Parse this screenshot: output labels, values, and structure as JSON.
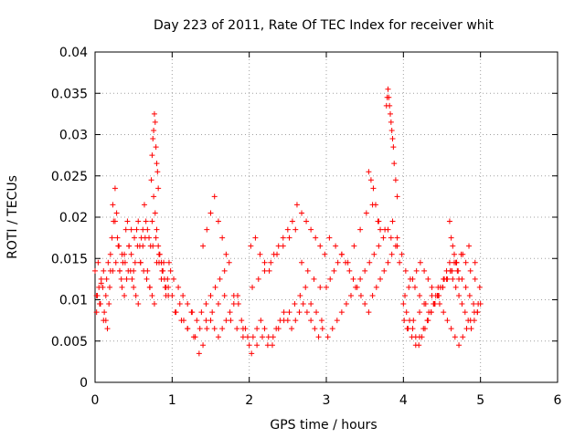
{
  "chart_data": {
    "type": "scatter",
    "title": "Day 223 of 2011, Rate Of TEC Index for receiver whit",
    "xlabel": "GPS time / hours",
    "ylabel": "ROTI / TECUs",
    "xlim": [
      0,
      6
    ],
    "ylim": [
      0,
      0.04
    ],
    "x_ticks": [
      0,
      1,
      2,
      3,
      4,
      5,
      6
    ],
    "x_tick_labels": [
      "0",
      "1",
      "2",
      "3",
      "4",
      "5",
      "6"
    ],
    "y_ticks": [
      0,
      0.005,
      0.01,
      0.015,
      0.02,
      0.025,
      0.03,
      0.035,
      0.04
    ],
    "y_tick_labels": [
      "0",
      "0.005",
      "0.01",
      "0.015",
      "0.02",
      "0.025",
      "0.03",
      "0.035",
      "0.04"
    ],
    "grid": true,
    "marker": "+",
    "marker_color": "#ff0000",
    "series": [
      {
        "name": "ROTI",
        "x": [
          0.0,
          0.02,
          0.04,
          0.06,
          0.08,
          0.1,
          0.12,
          0.14,
          0.16,
          0.18,
          0.2,
          0.22,
          0.24,
          0.26,
          0.28,
          0.3,
          0.32,
          0.34,
          0.36,
          0.38,
          0.4,
          0.42,
          0.44,
          0.46,
          0.48,
          0.5,
          0.52,
          0.54,
          0.56,
          0.58,
          0.6,
          0.62,
          0.64,
          0.66,
          0.68,
          0.7,
          0.72,
          0.74,
          0.76,
          0.78,
          0.8,
          0.82,
          0.84,
          0.86,
          0.88,
          0.9,
          0.92,
          0.94,
          0.96,
          0.98,
          0.02,
          0.05,
          0.08,
          0.11,
          0.14,
          0.17,
          0.2,
          0.23,
          0.26,
          0.29,
          0.32,
          0.35,
          0.38,
          0.41,
          0.44,
          0.47,
          0.5,
          0.53,
          0.56,
          0.59,
          0.62,
          0.65,
          0.68,
          0.71,
          0.74,
          0.77,
          0.8,
          0.83,
          0.86,
          0.89,
          0.92,
          0.95,
          0.03,
          0.07,
          0.11,
          0.15,
          0.19,
          0.23,
          0.27,
          0.31,
          0.35,
          0.39,
          0.43,
          0.47,
          0.51,
          0.55,
          0.59,
          0.63,
          0.67,
          0.71,
          0.75,
          0.79,
          0.83,
          0.87,
          0.91,
          0.95,
          0.73,
          0.74,
          0.75,
          0.76,
          0.77,
          0.78,
          0.79,
          0.8,
          0.81,
          0.82,
          1.0,
          1.05,
          1.1,
          1.15,
          1.2,
          1.25,
          1.3,
          1.35,
          1.4,
          1.45,
          1.5,
          1.55,
          1.6,
          1.65,
          1.7,
          1.75,
          1.8,
          1.85,
          1.9,
          1.95,
          1.02,
          1.08,
          1.14,
          1.2,
          1.26,
          1.32,
          1.38,
          1.44,
          1.5,
          1.56,
          1.62,
          1.68,
          1.74,
          1.8,
          1.86,
          1.92,
          1.98,
          1.04,
          1.12,
          1.2,
          1.28,
          1.36,
          1.44,
          1.52,
          1.6,
          1.68,
          1.76,
          1.84,
          1.92,
          1.4,
          1.45,
          1.5,
          1.55,
          1.6,
          1.65,
          1.7,
          2.0,
          2.05,
          2.1,
          2.15,
          2.2,
          2.25,
          2.3,
          2.35,
          2.4,
          2.45,
          2.5,
          2.55,
          2.6,
          2.65,
          2.7,
          2.75,
          2.8,
          2.85,
          2.9,
          2.95,
          2.02,
          2.08,
          2.14,
          2.2,
          2.26,
          2.32,
          2.38,
          2.44,
          2.5,
          2.56,
          2.62,
          2.68,
          2.74,
          2.8,
          2.86,
          2.92,
          2.98,
          2.04,
          2.12,
          2.2,
          2.28,
          2.36,
          2.44,
          2.52,
          2.6,
          2.68,
          2.76,
          2.84,
          2.92,
          2.03,
          2.1,
          2.17,
          2.24,
          2.31,
          2.38,
          2.45,
          2.52,
          2.59,
          2.66,
          2.73,
          2.8,
          2.87,
          2.94,
          3.0,
          3.05,
          3.1,
          3.15,
          3.2,
          3.25,
          3.3,
          3.35,
          3.4,
          3.45,
          3.5,
          3.55,
          3.6,
          3.65,
          3.7,
          3.75,
          3.8,
          3.85,
          3.9,
          3.95,
          3.02,
          3.08,
          3.14,
          3.2,
          3.26,
          3.32,
          3.38,
          3.44,
          3.5,
          3.56,
          3.62,
          3.68,
          3.74,
          3.8,
          3.86,
          3.92,
          3.98,
          3.04,
          3.12,
          3.2,
          3.28,
          3.36,
          3.44,
          3.52,
          3.6,
          3.68,
          3.76,
          3.84,
          3.92,
          3.78,
          3.79,
          3.8,
          3.81,
          3.82,
          3.83,
          3.84,
          3.85,
          3.86,
          3.87,
          3.88,
          3.9,
          3.92,
          3.55,
          3.58,
          3.61,
          3.64,
          3.67,
          3.7,
          4.0,
          4.04,
          4.08,
          4.12,
          4.16,
          4.2,
          4.24,
          4.28,
          4.32,
          4.36,
          4.4,
          4.44,
          4.48,
          4.52,
          4.56,
          4.6,
          4.64,
          4.68,
          4.72,
          4.76,
          4.8,
          4.84,
          4.88,
          4.92,
          4.96,
          5.0,
          4.02,
          4.07,
          4.12,
          4.17,
          4.22,
          4.27,
          4.32,
          4.37,
          4.42,
          4.47,
          4.52,
          4.57,
          4.62,
          4.67,
          4.72,
          4.77,
          4.82,
          4.87,
          4.92,
          4.97,
          4.01,
          4.06,
          4.11,
          4.16,
          4.21,
          4.26,
          4.31,
          4.36,
          4.41,
          4.46,
          4.51,
          4.56,
          4.61,
          4.66,
          4.71,
          4.76,
          4.81,
          4.86,
          4.91,
          4.96,
          4.03,
          4.09,
          4.15,
          4.21,
          4.27,
          4.33,
          4.39,
          4.45,
          4.51,
          4.57,
          4.63,
          4.69,
          4.75,
          4.81,
          4.87,
          4.93,
          4.99,
          4.05,
          4.13,
          4.21,
          4.29,
          4.37,
          4.45,
          4.53,
          4.61,
          4.69,
          4.77,
          4.85,
          4.93,
          4.6,
          4.62,
          4.64,
          4.66,
          4.68,
          4.7,
          4.72
        ],
        "y": [
          0.0135,
          0.0105,
          0.0145,
          0.0095,
          0.012,
          0.0115,
          0.0085,
          0.0075,
          0.0065,
          0.0095,
          0.0135,
          0.0175,
          0.0195,
          0.0235,
          0.0205,
          0.0165,
          0.0135,
          0.0125,
          0.0145,
          0.0155,
          0.0185,
          0.0195,
          0.0165,
          0.0135,
          0.0125,
          0.0115,
          0.0145,
          0.0185,
          0.0195,
          0.0165,
          0.0175,
          0.0185,
          0.0215,
          0.0195,
          0.0185,
          0.0175,
          0.0165,
          0.0195,
          0.0225,
          0.0205,
          0.0185,
          0.0165,
          0.0155,
          0.0145,
          0.0135,
          0.0125,
          0.0115,
          0.0125,
          0.0145,
          0.0135,
          0.0085,
          0.0115,
          0.0125,
          0.0075,
          0.0105,
          0.0145,
          0.0155,
          0.0215,
          0.0195,
          0.0175,
          0.0135,
          0.0115,
          0.0105,
          0.0125,
          0.0165,
          0.0185,
          0.0135,
          0.0105,
          0.0095,
          0.0145,
          0.0165,
          0.0175,
          0.0135,
          0.0115,
          0.0105,
          0.0095,
          0.0145,
          0.0155,
          0.0125,
          0.0145,
          0.0105,
          0.0115,
          0.0105,
          0.0095,
          0.0135,
          0.0125,
          0.0115,
          0.0135,
          0.0145,
          0.0165,
          0.0155,
          0.0145,
          0.0135,
          0.0155,
          0.0175,
          0.0165,
          0.0145,
          0.0135,
          0.0125,
          0.0115,
          0.0165,
          0.0175,
          0.0145,
          0.0135,
          0.0115,
          0.0105,
          0.0245,
          0.0275,
          0.0295,
          0.0305,
          0.0325,
          0.0315,
          0.0285,
          0.0265,
          0.0255,
          0.0235,
          0.0105,
          0.0085,
          0.0095,
          0.0075,
          0.0065,
          0.0085,
          0.0055,
          0.0035,
          0.0045,
          0.0065,
          0.0075,
          0.0065,
          0.0055,
          0.0065,
          0.0075,
          0.0085,
          0.0095,
          0.0105,
          0.0075,
          0.0065,
          0.0125,
          0.0115,
          0.0105,
          0.0095,
          0.0085,
          0.0075,
          0.0085,
          0.0095,
          0.0105,
          0.0115,
          0.0125,
          0.0135,
          0.0145,
          0.0105,
          0.0095,
          0.0065,
          0.0055,
          0.0085,
          0.0075,
          0.0065,
          0.0055,
          0.0065,
          0.0075,
          0.0085,
          0.0095,
          0.0105,
          0.0075,
          0.0065,
          0.0055,
          0.0165,
          0.0185,
          0.0205,
          0.0225,
          0.0195,
          0.0175,
          0.0155,
          0.0045,
          0.0055,
          0.0065,
          0.0075,
          0.0065,
          0.0055,
          0.0045,
          0.0065,
          0.0075,
          0.0085,
          0.0075,
          0.0065,
          0.0075,
          0.0085,
          0.0095,
          0.0085,
          0.0075,
          0.0065,
          0.0055,
          0.0065,
          0.0165,
          0.0175,
          0.0155,
          0.0145,
          0.0135,
          0.0155,
          0.0165,
          0.0175,
          0.0185,
          0.0195,
          0.0215,
          0.0205,
          0.0195,
          0.0185,
          0.0175,
          0.0165,
          0.0155,
          0.0115,
          0.0125,
          0.0135,
          0.0145,
          0.0155,
          0.0165,
          0.0175,
          0.0185,
          0.0145,
          0.0135,
          0.0125,
          0.0115,
          0.0035,
          0.0045,
          0.0055,
          0.0045,
          0.0055,
          0.0065,
          0.0075,
          0.0085,
          0.0095,
          0.0105,
          0.0115,
          0.0095,
          0.0085,
          0.0075,
          0.0115,
          0.0125,
          0.0135,
          0.0145,
          0.0155,
          0.0145,
          0.0135,
          0.0125,
          0.0115,
          0.0105,
          0.0095,
          0.0085,
          0.0105,
          0.0115,
          0.0125,
          0.0135,
          0.0145,
          0.0155,
          0.0165,
          0.0145,
          0.0055,
          0.0065,
          0.0075,
          0.0085,
          0.0095,
          0.0105,
          0.0115,
          0.0125,
          0.0135,
          0.0145,
          0.0155,
          0.0165,
          0.0175,
          0.0185,
          0.0195,
          0.0175,
          0.0155,
          0.0175,
          0.0165,
          0.0155,
          0.0145,
          0.0165,
          0.0185,
          0.0205,
          0.0215,
          0.0195,
          0.0185,
          0.0175,
          0.0165,
          0.0335,
          0.0345,
          0.0355,
          0.0345,
          0.0335,
          0.0325,
          0.0315,
          0.0305,
          0.0295,
          0.0285,
          0.0265,
          0.0245,
          0.0225,
          0.0255,
          0.0245,
          0.0235,
          0.0215,
          0.0195,
          0.0185,
          0.0095,
          0.0085,
          0.0075,
          0.0065,
          0.0055,
          0.0045,
          0.0055,
          0.0065,
          0.0075,
          0.0085,
          0.0095,
          0.0105,
          0.0115,
          0.0125,
          0.0135,
          0.0145,
          0.0125,
          0.0115,
          0.0105,
          0.0095,
          0.0085,
          0.0075,
          0.0065,
          0.0075,
          0.0085,
          0.0095,
          0.0105,
          0.0115,
          0.0125,
          0.0135,
          0.0145,
          0.0135,
          0.0125,
          0.0115,
          0.0105,
          0.0095,
          0.0085,
          0.0075,
          0.0065,
          0.0055,
          0.0045,
          0.0055,
          0.0065,
          0.0075,
          0.0085,
          0.0095,
          0.0075,
          0.0065,
          0.0055,
          0.0045,
          0.0055,
          0.0065,
          0.0075,
          0.0085,
          0.0095,
          0.0105,
          0.0115,
          0.0125,
          0.0135,
          0.0145,
          0.0135,
          0.0125,
          0.0115,
          0.0105,
          0.0095,
          0.0085,
          0.0135,
          0.0125,
          0.0115,
          0.0105,
          0.0095,
          0.0085,
          0.0095,
          0.0105,
          0.0115,
          0.0125,
          0.0135,
          0.0145,
          0.0155,
          0.0145,
          0.0135,
          0.0125,
          0.0115,
          0.0065,
          0.0075,
          0.0085,
          0.0095,
          0.0105,
          0.0115,
          0.0125,
          0.0135,
          0.0145,
          0.0155,
          0.0165,
          0.0145,
          0.0195,
          0.0175,
          0.0165,
          0.0155,
          0.0145,
          0.0135,
          0.0125
        ]
      }
    ]
  }
}
